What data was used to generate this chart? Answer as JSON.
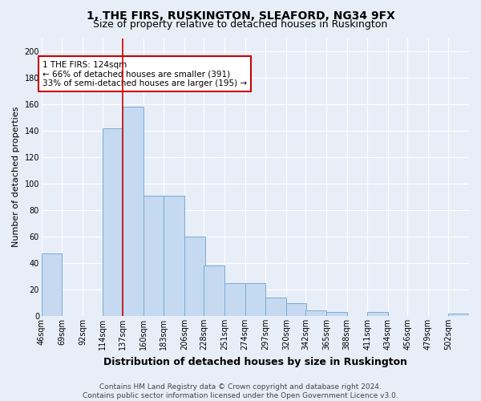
{
  "title": "1, THE FIRS, RUSKINGTON, SLEAFORD, NG34 9FX",
  "subtitle": "Size of property relative to detached houses in Ruskington",
  "xlabel": "Distribution of detached houses by size in Ruskington",
  "ylabel": "Number of detached properties",
  "bins": [
    46,
    69,
    92,
    114,
    137,
    160,
    183,
    206,
    228,
    251,
    274,
    297,
    320,
    342,
    365,
    388,
    411,
    434,
    456,
    479,
    502
  ],
  "bin_width": 23,
  "values": [
    47,
    0,
    0,
    142,
    158,
    91,
    91,
    60,
    38,
    25,
    25,
    14,
    10,
    4,
    3,
    0,
    3,
    0,
    0,
    0,
    2
  ],
  "bar_color": "#c5d9f0",
  "bar_edge_color": "#7aadd4",
  "red_line_x": 137,
  "annotation_text": "1 THE FIRS: 124sqm\n← 66% of detached houses are smaller (391)\n33% of semi-detached houses are larger (195) →",
  "annotation_box_color": "#ffffff",
  "annotation_box_edge": "#cc0000",
  "ylim": [
    0,
    210
  ],
  "yticks": [
    0,
    20,
    40,
    60,
    80,
    100,
    120,
    140,
    160,
    180,
    200
  ],
  "bg_color": "#e8eef8",
  "plot_bg_color": "#e8eef8",
  "footer": "Contains HM Land Registry data © Crown copyright and database right 2024.\nContains public sector information licensed under the Open Government Licence v3.0.",
  "title_fontsize": 10,
  "subtitle_fontsize": 9,
  "xlabel_fontsize": 9,
  "ylabel_fontsize": 8,
  "tick_fontsize": 7,
  "footer_fontsize": 6.5,
  "annot_fontsize": 7.5
}
